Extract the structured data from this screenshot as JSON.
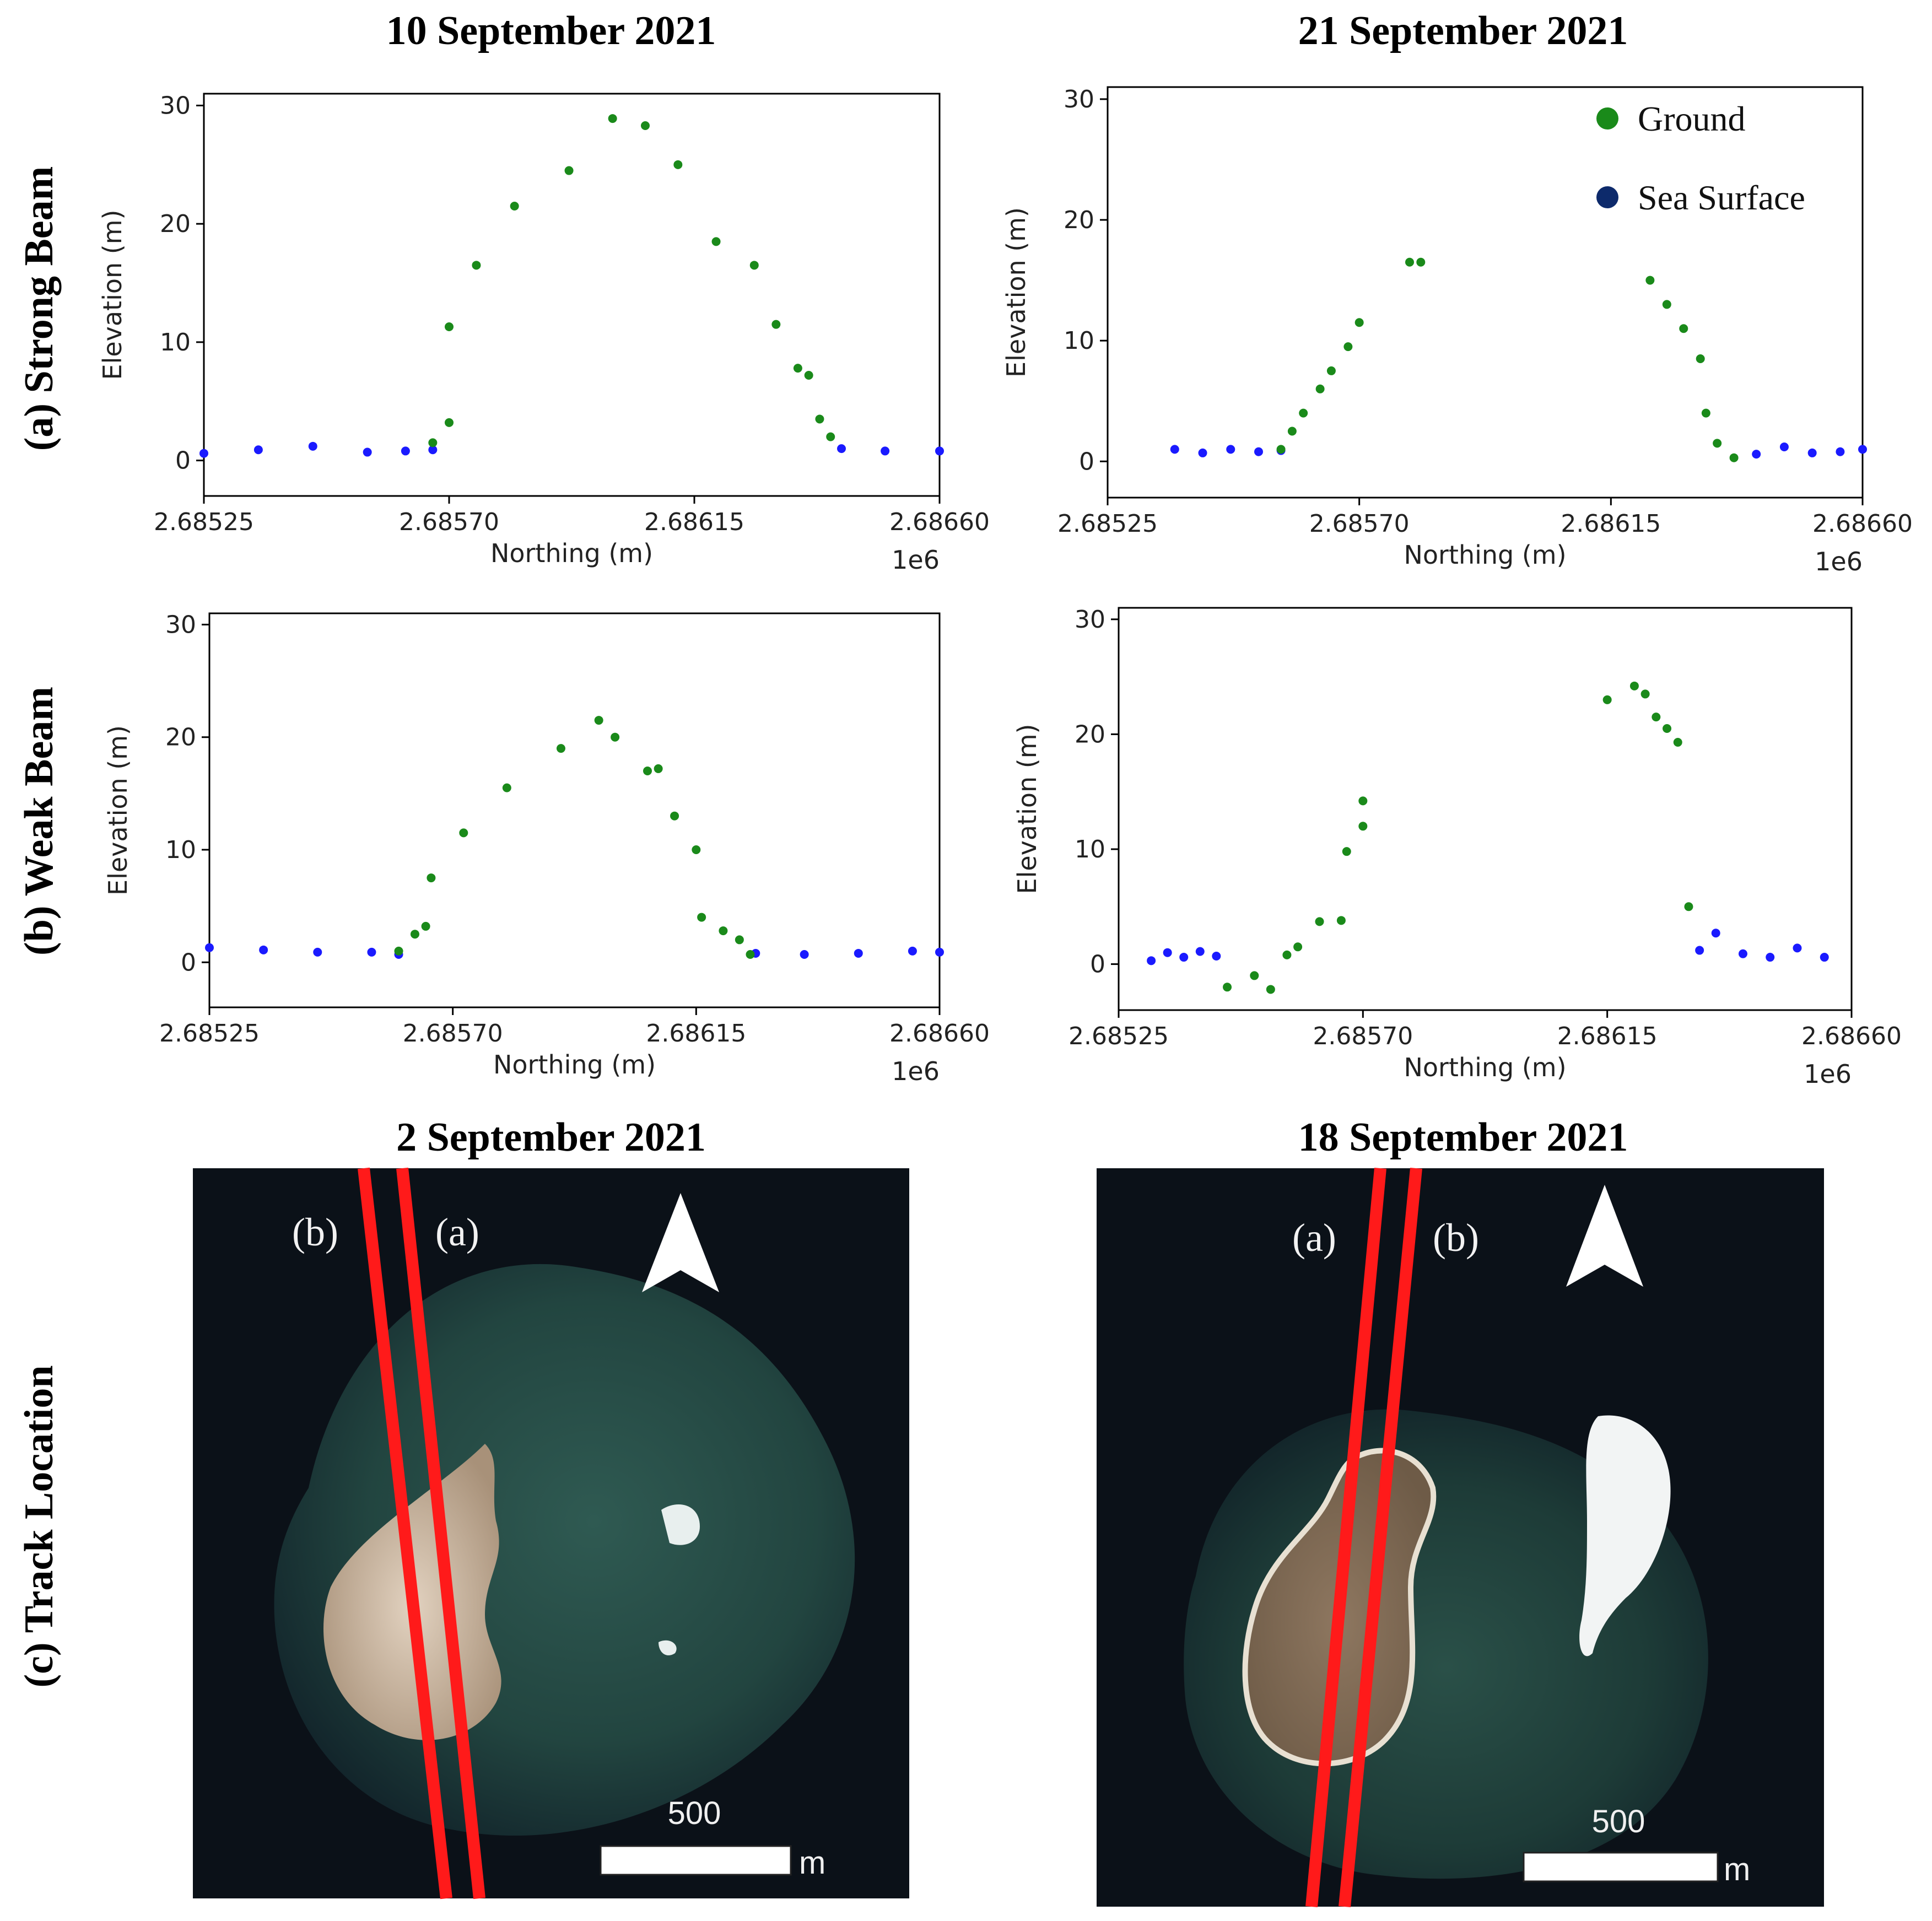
{
  "columns": {
    "upper_left": "10 September 2021",
    "upper_right": "21 September 2021",
    "lower_left": "2 September 2021",
    "lower_right": "18 September 2021"
  },
  "rows": {
    "strong": "(a) Strong Beam",
    "weak": "(b) Weak Beam",
    "track": "(c) Track Location"
  },
  "legend": {
    "ground": "Ground",
    "sea": "Sea Surface"
  },
  "colors": {
    "ground": "#1a8a1a",
    "sea": "#1a1aff",
    "legend_sea": "#0d2a6b",
    "track": "#ff1a1a"
  },
  "chart_data": [
    {
      "id": "strong-sep10",
      "type": "scatter",
      "title": "10 September 2021",
      "xlabel": "Northing (m)",
      "ylabel": "Elevation (m)",
      "xoffset_label": "1e6",
      "xlim": [
        2.68525,
        2.6866
      ],
      "ylim": [
        -3,
        31
      ],
      "xticks": [
        "2.68525",
        "2.68570",
        "2.68615",
        "2.68660"
      ],
      "yticks": [
        "0",
        "10",
        "20",
        "30"
      ],
      "series": [
        {
          "name": "Sea Surface",
          "color": "#1a1aff",
          "x": [
            2.68525,
            2.68535,
            2.68545,
            2.68555,
            2.68562,
            2.68567,
            2.68642,
            2.6865,
            2.6866
          ],
          "y": [
            0.6,
            0.9,
            1.2,
            0.7,
            0.8,
            0.9,
            1.0,
            0.8,
            0.8
          ]
        },
        {
          "name": "Ground",
          "color": "#1a8a1a",
          "x": [
            2.68567,
            2.6857,
            2.6857,
            2.68575,
            2.68582,
            2.68592,
            2.686,
            2.68606,
            2.68612,
            2.68619,
            2.68626,
            2.6863,
            2.68634,
            2.68636,
            2.68638,
            2.6864
          ],
          "y": [
            1.5,
            3.2,
            11.3,
            16.5,
            21.5,
            24.5,
            28.9,
            28.3,
            25.0,
            18.5,
            16.5,
            11.5,
            7.8,
            7.2,
            3.5,
            2.0
          ]
        }
      ]
    },
    {
      "id": "strong-sep21",
      "type": "scatter",
      "title": "21 September 2021",
      "xlabel": "Northing (m)",
      "ylabel": "Elevation (m)",
      "xoffset_label": "1e6",
      "xlim": [
        2.68525,
        2.6866
      ],
      "ylim": [
        -3,
        31
      ],
      "xticks": [
        "2.68525",
        "2.68570",
        "2.68615",
        "2.68660"
      ],
      "yticks": [
        "0",
        "10",
        "20",
        "30"
      ],
      "legend": [
        "Ground",
        "Sea Surface"
      ],
      "legend_loc": "upper right",
      "series": [
        {
          "name": "Sea Surface",
          "color": "#1a1aff",
          "x": [
            2.68537,
            2.68542,
            2.68547,
            2.68552,
            2.68556,
            2.68641,
            2.68646,
            2.68651,
            2.68656,
            2.6866
          ],
          "y": [
            1.0,
            0.7,
            1.0,
            0.8,
            0.9,
            0.6,
            1.2,
            0.7,
            0.8,
            1.0
          ]
        },
        {
          "name": "Ground",
          "color": "#1a8a1a",
          "x": [
            2.68556,
            2.68558,
            2.6856,
            2.68563,
            2.68565,
            2.68568,
            2.6857,
            2.68579,
            2.68581,
            2.68622,
            2.68625,
            2.68628,
            2.68631,
            2.68632,
            2.68634,
            2.68637
          ],
          "y": [
            1.0,
            2.5,
            4.0,
            6.0,
            7.5,
            9.5,
            11.5,
            16.5,
            16.5,
            15.0,
            13.0,
            11.0,
            8.5,
            4.0,
            1.5,
            0.3
          ]
        }
      ]
    },
    {
      "id": "weak-sep10",
      "type": "scatter",
      "xlabel": "Northing (m)",
      "ylabel": "Elevation (m)",
      "xoffset_label": "1e6",
      "xlim": [
        2.68525,
        2.6866
      ],
      "ylim": [
        -4,
        31
      ],
      "xticks": [
        "2.68525",
        "2.68570",
        "2.68615",
        "2.68660"
      ],
      "yticks": [
        "0",
        "10",
        "20",
        "30"
      ],
      "series": [
        {
          "name": "Sea Surface",
          "color": "#1a1aff",
          "x": [
            2.68525,
            2.68535,
            2.68545,
            2.68555,
            2.6856,
            2.68626,
            2.68635,
            2.68645,
            2.68655,
            2.6866
          ],
          "y": [
            1.3,
            1.1,
            0.9,
            0.9,
            0.7,
            0.8,
            0.7,
            0.8,
            1.0,
            0.9
          ]
        },
        {
          "name": "Ground",
          "color": "#1a8a1a",
          "x": [
            2.6856,
            2.68563,
            2.68565,
            2.68566,
            2.68572,
            2.6858,
            2.6859,
            2.68597,
            2.686,
            2.68606,
            2.68608,
            2.68611,
            2.68615,
            2.68616,
            2.6862,
            2.68623,
            2.68625
          ],
          "y": [
            1.0,
            2.5,
            3.2,
            7.5,
            11.5,
            15.5,
            19.0,
            21.5,
            20.0,
            17.0,
            17.2,
            13.0,
            10.0,
            4.0,
            2.8,
            2.0,
            0.7
          ]
        }
      ]
    },
    {
      "id": "weak-sep21",
      "type": "scatter",
      "xlabel": "Northing (m)",
      "ylabel": "Elevation (m)",
      "xoffset_label": "1e6",
      "xlim": [
        2.68525,
        2.6866
      ],
      "ylim": [
        -4,
        31
      ],
      "xticks": [
        "2.68525",
        "2.68570",
        "2.68615",
        "2.68660"
      ],
      "yticks": [
        "0",
        "10",
        "20",
        "30"
      ],
      "series": [
        {
          "name": "Sea Surface",
          "color": "#1a1aff",
          "x": [
            2.68531,
            2.68534,
            2.68537,
            2.6854,
            2.68543,
            2.68632,
            2.68635,
            2.6864,
            2.68645,
            2.6865,
            2.68655
          ],
          "y": [
            0.3,
            1.0,
            0.6,
            1.1,
            0.7,
            1.2,
            2.7,
            0.9,
            0.6,
            1.4,
            0.6
          ]
        },
        {
          "name": "Ground",
          "color": "#1a8a1a",
          "x": [
            2.68545,
            2.6855,
            2.68553,
            2.68556,
            2.68558,
            2.68562,
            2.68566,
            2.68567,
            2.6857,
            2.6857,
            2.68615,
            2.6862,
            2.68622,
            2.68624,
            2.68626,
            2.68628,
            2.6863
          ],
          "y": [
            -2.0,
            -1.0,
            -2.2,
            0.8,
            1.5,
            3.7,
            3.8,
            9.8,
            12.0,
            14.2,
            23.0,
            24.2,
            23.5,
            21.5,
            20.5,
            19.3,
            5.0
          ]
        }
      ]
    }
  ],
  "maps": [
    {
      "title": "2 September 2021",
      "track_labels": [
        "(b)",
        "(a)"
      ],
      "scale_value": "500",
      "scale_unit": "m"
    },
    {
      "title": "18 September 2021",
      "track_labels": [
        "(a)",
        "(b)"
      ],
      "scale_value": "500",
      "scale_unit": "m"
    }
  ]
}
